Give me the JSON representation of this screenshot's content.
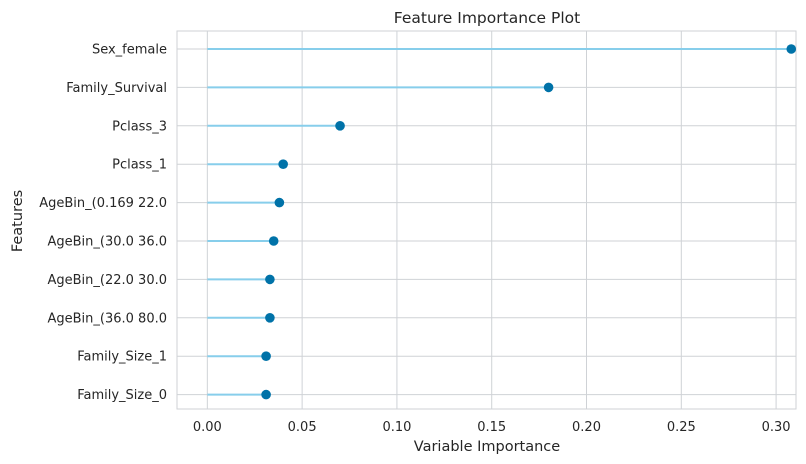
{
  "chart_data": {
    "type": "lollipop",
    "title": "Feature Importance Plot",
    "xlabel": "Variable Importance",
    "ylabel": "Features",
    "xlim": [
      -0.016,
      0.3105
    ],
    "xticks": [
      0.0,
      0.05,
      0.1,
      0.15,
      0.2,
      0.25,
      0.3
    ],
    "xtick_labels": [
      "0.00",
      "0.05",
      "0.10",
      "0.15",
      "0.20",
      "0.25",
      "0.30"
    ],
    "grid": true,
    "categories": [
      "Sex_female",
      "Family_Survival",
      "Pclass_3",
      "Pclass_1",
      "AgeBin_(0.169 22.0",
      "AgeBin_(30.0 36.0",
      "AgeBin_(22.0 30.0",
      "AgeBin_(36.0 80.0",
      "Family_Size_1",
      "Family_Size_0"
    ],
    "values": [
      0.308,
      0.18,
      0.07,
      0.04,
      0.038,
      0.035,
      0.033,
      0.033,
      0.031,
      0.031
    ],
    "line_color": "#87ceeb",
    "marker_color": "#0072a8",
    "grid_color": "#cfd2d6",
    "frame_color": "#cfd2d6"
  }
}
